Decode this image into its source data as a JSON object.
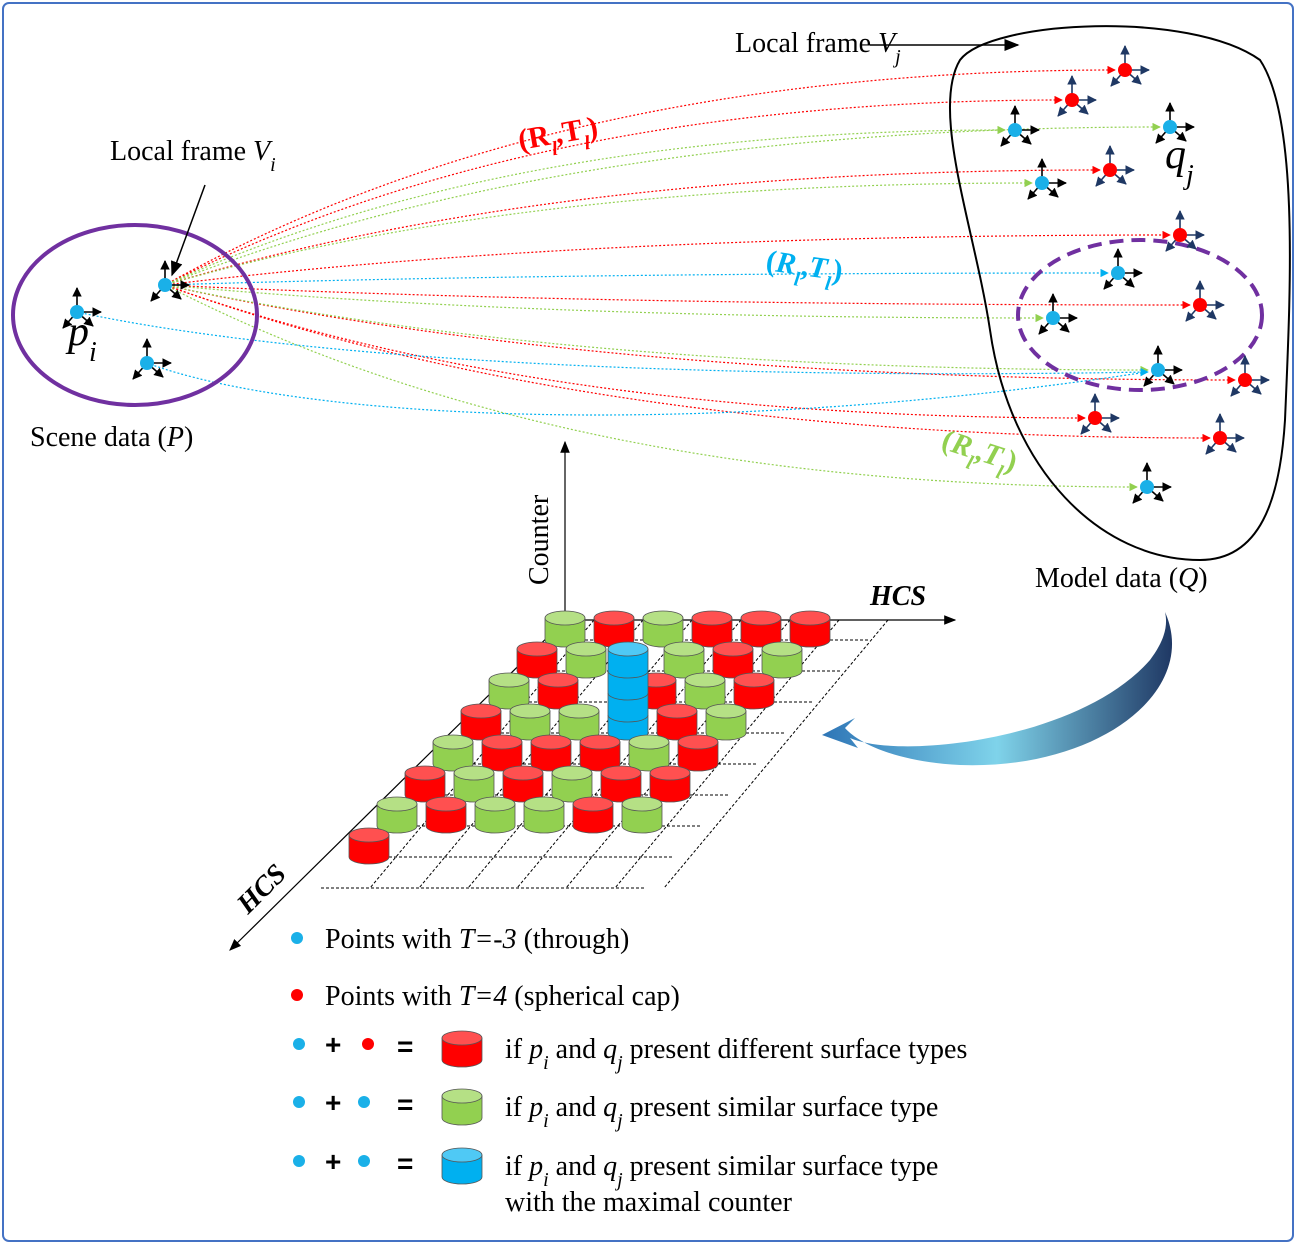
{
  "scene": {
    "frame_label": [
      "Local frame ",
      "V",
      "i"
    ],
    "point_label": [
      "p",
      "i"
    ],
    "caption": [
      "Scene data (",
      "P",
      ")"
    ]
  },
  "model": {
    "frame_label": [
      "Local frame ",
      "V",
      "j"
    ],
    "point_label": [
      "q",
      "j"
    ],
    "caption": [
      "Model data (",
      "Q",
      ")"
    ]
  },
  "transforms": [
    {
      "color": "#ff0000",
      "parts": [
        "(",
        "R",
        "l",
        ",",
        "T",
        "l",
        ")"
      ]
    },
    {
      "color": "#00b0f0",
      "parts": [
        "(",
        "R",
        "l",
        ",",
        "T",
        "l",
        ")"
      ]
    },
    {
      "color": "#92d050",
      "parts": [
        "(",
        "R",
        "l",
        ",",
        "T",
        "l",
        ")"
      ]
    }
  ],
  "axes": {
    "vertical": "Counter",
    "horizontal": "HCS",
    "depth": "HCS"
  },
  "legend": [
    {
      "text": [
        "Points with ",
        "T=-3",
        " (through)"
      ]
    },
    {
      "text": [
        "Points with ",
        "T=4",
        " (spherical cap)"
      ]
    },
    {
      "plus": "+",
      "equals": "=",
      "text": [
        "if ",
        "p",
        "i",
        " and ",
        "q",
        "j",
        " present different surface types"
      ]
    },
    {
      "plus": "+",
      "equals": "=",
      "text": [
        "if ",
        "p",
        "i",
        " and ",
        "q",
        "j",
        " present similar surface type"
      ]
    },
    {
      "plus": "+",
      "equals": "=",
      "text": [
        "if ",
        "p",
        "i",
        " and ",
        "q",
        "j",
        " present similar surface type"
      ],
      "text2": "with the maximal counter"
    }
  ]
}
